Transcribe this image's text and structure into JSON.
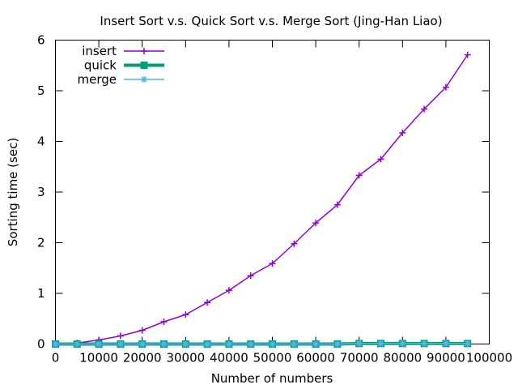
{
  "chart_data": {
    "type": "line",
    "title": "Insert Sort v.s. Quick Sort v.s. Merge Sort (Jing-Han Liao)",
    "xlabel": "Number of numbers",
    "ylabel": "Sorting time (sec)",
    "xlim": [
      0,
      100000
    ],
    "ylim": [
      0,
      6
    ],
    "x_ticks": [
      0,
      10000,
      20000,
      30000,
      40000,
      50000,
      60000,
      70000,
      80000,
      90000,
      100000
    ],
    "y_ticks": [
      0,
      1,
      2,
      3,
      4,
      5,
      6
    ],
    "grid": false,
    "legend_position": "top-left",
    "x": [
      0,
      5000,
      10000,
      15000,
      20000,
      25000,
      30000,
      35000,
      40000,
      45000,
      50000,
      55000,
      60000,
      65000,
      70000,
      75000,
      80000,
      85000,
      90000,
      95000
    ],
    "series": [
      {
        "name": "insert",
        "color": "#9400d3",
        "marker": "plus",
        "values": [
          0.0,
          0.02,
          0.08,
          0.16,
          0.27,
          0.44,
          0.58,
          0.82,
          1.06,
          1.35,
          1.59,
          1.98,
          2.39,
          2.75,
          3.33,
          3.65,
          4.17,
          4.64,
          5.07,
          5.71
        ]
      },
      {
        "name": "quick",
        "color": "#009e73",
        "marker": "square",
        "values": [
          0.0,
          0.0,
          0.0,
          0.0,
          0.0,
          0.0,
          0.0,
          0.0,
          0.0,
          0.0,
          0.0,
          0.0,
          0.0,
          0.0,
          0.01,
          0.01,
          0.01,
          0.01,
          0.01,
          0.01
        ]
      },
      {
        "name": "merge",
        "color": "#56b4e9",
        "marker": "star",
        "values": [
          0.0,
          0.0,
          0.0,
          0.0,
          0.0,
          0.0,
          0.0,
          0.0,
          0.0,
          0.0,
          0.0,
          0.0,
          0.0,
          0.0,
          0.01,
          0.01,
          0.01,
          0.01,
          0.01,
          0.01
        ]
      }
    ]
  }
}
